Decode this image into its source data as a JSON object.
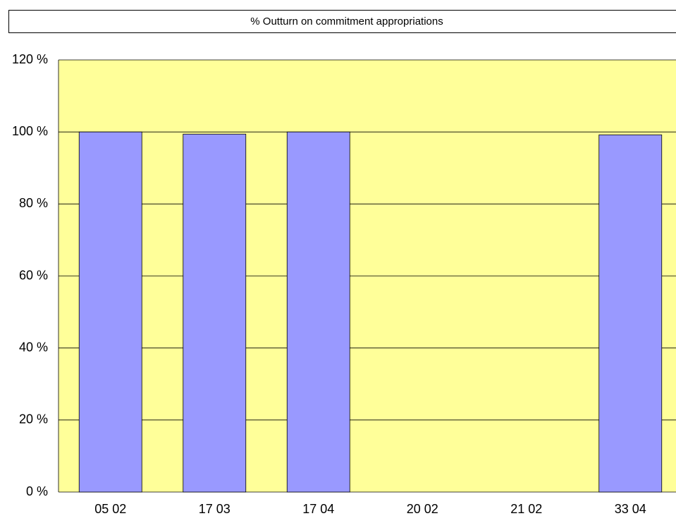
{
  "chart_data": {
    "type": "bar",
    "title": "% Outturn on commitment appropriations",
    "categories": [
      "05 02",
      "17 03",
      "17 04",
      "20 02",
      "21 02",
      "33 04"
    ],
    "values": [
      100,
      99.4,
      100,
      0,
      0,
      99.2
    ],
    "color": "#9999ff",
    "background": "#ffff99",
    "ylim": [
      0,
      120
    ],
    "yticks": [
      {
        "value": 0,
        "label": "0 %"
      },
      {
        "value": 20,
        "label": "20 %"
      },
      {
        "value": 40,
        "label": "40 %"
      },
      {
        "value": 60,
        "label": "60 %"
      },
      {
        "value": 80,
        "label": "80 %"
      },
      {
        "value": 100,
        "label": "100 %"
      },
      {
        "value": 120,
        "label": "120 %"
      }
    ],
    "grid": true
  }
}
